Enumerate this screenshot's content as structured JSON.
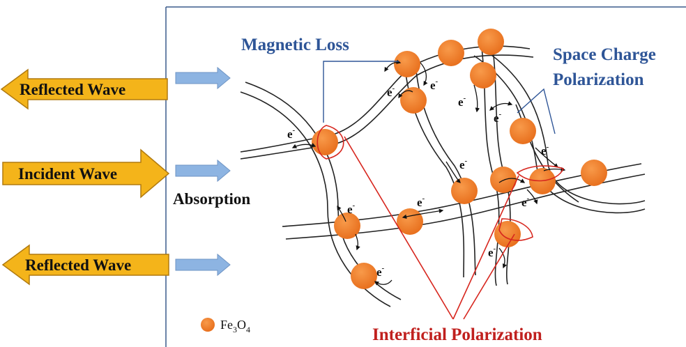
{
  "left_panel": {
    "arrow_color": "#F4B41A",
    "arrow_border": "#B07A10",
    "reflected_wave_top": "Reflected Wave",
    "incident_wave": "Incident Wave",
    "reflected_wave_bottom": "Reflected Wave",
    "absorption": "Absorption",
    "small_arrow_color": "#8DB4E2"
  },
  "labels": {
    "magnetic_loss": "Magnetic Loss",
    "space_charge_line1": "Space Charge",
    "space_charge_line2": "Polarization",
    "interficial_polarization": "Interficial Polarization",
    "blue_label_color": "#2E5597",
    "red_label_color": "#C0201E"
  },
  "electron": {
    "symbol": "e",
    "charge": "-"
  },
  "legend": {
    "fe": "Fe",
    "fe_sub": "3",
    "o": "O",
    "o_sub": "4",
    "particle_color": "#F28330"
  }
}
